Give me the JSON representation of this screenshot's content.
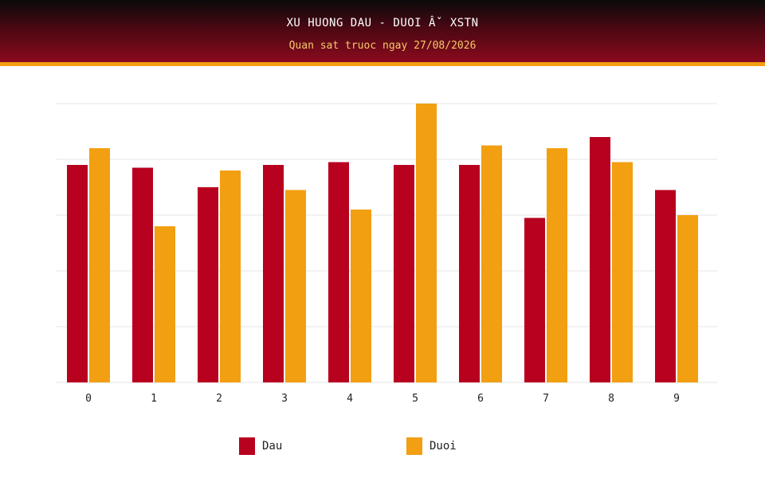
{
  "header": {
    "title": "XU HUONG DAU - DUOI Âˇ XSTN",
    "subtitle": "Quan sat truoc ngay 27/08/2026"
  },
  "colors": {
    "dau": "#b8001f",
    "duoi": "#f29f12",
    "grid": "#e6e6e6"
  },
  "chart_data": {
    "type": "bar",
    "categories": [
      "0",
      "1",
      "2",
      "3",
      "4",
      "5",
      "6",
      "7",
      "8",
      "9"
    ],
    "series": [
      {
        "name": "Dau",
        "values": [
          7.8,
          7.7,
          7.0,
          7.8,
          7.9,
          7.8,
          7.8,
          5.9,
          8.8,
          6.9
        ]
      },
      {
        "name": "Duoi",
        "values": [
          8.4,
          5.6,
          7.6,
          6.9,
          6.2,
          10.0,
          8.5,
          8.4,
          7.9,
          6.0
        ]
      }
    ],
    "ylim": [
      0,
      10
    ],
    "grid": true,
    "legend": "bottom"
  },
  "legend": {
    "items": [
      {
        "label": "Dau"
      },
      {
        "label": "Duoi"
      }
    ]
  }
}
